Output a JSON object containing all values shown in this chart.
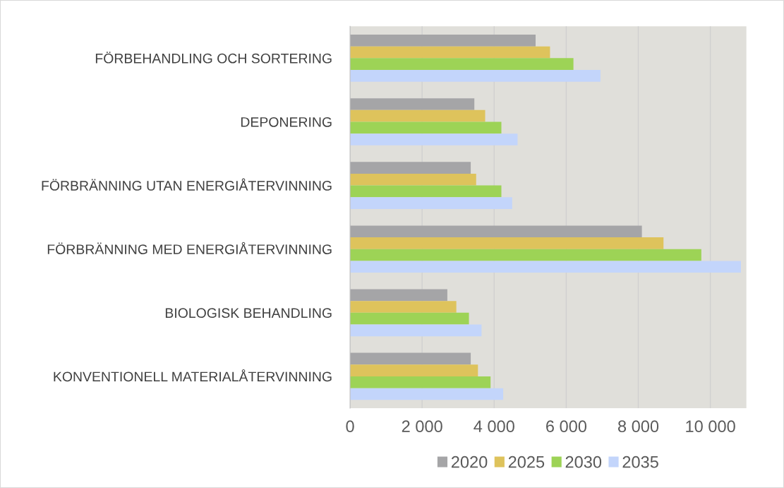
{
  "chart_data": {
    "type": "bar",
    "orientation": "horizontal",
    "categories": [
      "FÖRBEHANDLING OCH SORTERING",
      "DEPONERING",
      "FÖRBRÄNNING UTAN ENERGIÅTERVINNING",
      "FÖRBRÄNNING MED ENERGIÅTERVINNING",
      "BIOLOGISK BEHANDLING",
      "KONVENTIONELL MATERIALÅTERVINNING"
    ],
    "series": [
      {
        "name": "2020",
        "color": "#a5a5a7",
        "values": [
          5150,
          3450,
          3350,
          8100,
          2700,
          3350
        ]
      },
      {
        "name": "2025",
        "color": "#dec35c",
        "values": [
          5550,
          3750,
          3500,
          8700,
          2950,
          3550
        ]
      },
      {
        "name": "2030",
        "color": "#9dd356",
        "values": [
          6200,
          4200,
          4200,
          9750,
          3300,
          3900
        ]
      },
      {
        "name": "2035",
        "color": "#c3d5fb",
        "values": [
          6950,
          4650,
          4500,
          10850,
          3650,
          4250
        ]
      }
    ],
    "xlim": [
      0,
      11000
    ],
    "xticks": [
      0,
      {
        "value": 2000,
        "label": "2 000"
      },
      {
        "value": 4000,
        "label": "4 000"
      },
      {
        "value": 6000,
        "label": "6 000"
      },
      {
        "value": 8000,
        "label": "8 000"
      },
      {
        "value": 10000,
        "label": "10 000"
      }
    ],
    "grid": "x",
    "legend": "bottom"
  }
}
